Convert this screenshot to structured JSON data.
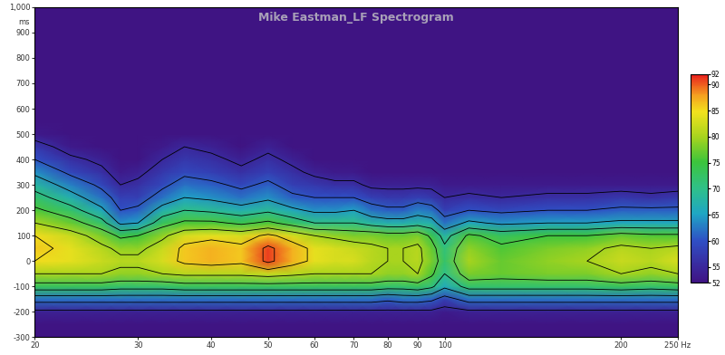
{
  "chart_data": {
    "type": "heatmap",
    "title": "Mike Eastman_LF Spectrogram",
    "ylabel": "ms",
    "log": "x",
    "grid": false,
    "xlim": [
      20,
      250
    ],
    "xticks": [
      20,
      30,
      40,
      50,
      60,
      70,
      80,
      90,
      100,
      200,
      {
        "value": 250,
        "label": "250 Hz"
      }
    ],
    "ylim": [
      -300,
      1000
    ],
    "yticks": [
      -300,
      -200,
      -100,
      0,
      100,
      200,
      300,
      400,
      500,
      600,
      700,
      800,
      900,
      {
        "value": 1000,
        "label": "1,000"
      }
    ],
    "x": [
      20,
      23,
      26,
      28,
      30,
      33,
      36,
      40,
      45,
      50,
      55,
      60,
      65,
      70,
      75,
      80,
      85,
      90,
      95,
      100,
      110,
      125,
      150,
      175,
      200,
      225,
      250
    ],
    "y": [
      -250,
      -200,
      -150,
      -100,
      -50,
      0,
      50,
      100,
      150,
      200,
      250,
      300,
      350,
      400,
      450,
      500,
      550
    ],
    "values": [
      [
        52,
        52,
        52,
        52,
        52,
        52,
        52,
        52,
        52,
        52,
        52,
        52,
        52,
        52,
        52,
        52,
        52,
        52,
        52,
        52,
        52,
        52,
        52,
        52,
        52,
        52,
        52
      ],
      [
        54,
        54,
        54,
        54,
        54,
        54,
        54,
        54,
        54,
        54,
        54,
        54,
        54,
        54,
        54,
        54,
        54,
        54,
        54,
        53,
        54,
        54,
        54,
        54,
        54,
        54,
        54
      ],
      [
        62,
        62,
        62,
        62,
        62,
        62,
        62,
        62,
        62,
        62,
        62,
        62,
        62,
        62,
        62,
        61,
        62,
        62,
        61,
        58,
        62,
        62,
        62,
        62,
        62,
        62,
        62
      ],
      [
        73,
        73,
        73,
        72,
        72,
        72,
        73,
        73,
        73,
        73,
        73,
        73,
        73,
        73,
        73,
        72,
        72,
        73,
        71,
        66,
        72,
        72,
        72,
        72,
        73,
        72,
        73
      ],
      [
        80,
        80,
        80,
        79,
        79,
        80,
        81,
        81,
        81,
        82,
        81,
        80,
        80,
        80,
        80,
        79,
        79,
        80,
        76,
        70,
        78,
        77,
        78,
        78,
        80,
        79,
        80
      ],
      [
        85,
        84,
        82,
        81,
        81,
        83,
        86,
        87,
        86,
        91,
        87,
        84,
        83,
        83,
        81,
        80,
        80,
        81,
        78,
        72,
        80,
        77,
        79,
        80,
        82,
        81,
        83
      ],
      [
        86,
        84,
        81,
        79,
        79,
        82,
        86,
        87,
        86,
        91,
        87,
        84,
        83,
        82,
        81,
        80,
        80,
        81,
        77,
        71,
        79,
        76,
        78,
        79,
        81,
        80,
        81
      ],
      [
        85,
        82,
        78,
        74,
        75,
        79,
        83,
        84,
        83,
        86,
        83,
        80,
        79,
        78,
        78,
        77,
        77,
        78,
        74,
        68,
        76,
        73,
        75,
        75,
        77,
        76,
        76
      ],
      [
        80,
        77,
        72,
        64,
        65,
        73,
        76,
        76,
        74,
        76,
        73,
        70,
        70,
        70,
        68,
        67,
        67,
        68,
        67,
        62,
        66,
        64,
        65,
        65,
        66,
        66,
        66
      ],
      [
        76,
        72,
        66,
        60,
        61,
        67,
        70,
        69,
        67,
        69,
        66,
        64,
        64,
        65,
        62,
        61,
        61,
        63,
        62,
        58,
        60,
        59,
        60,
        60,
        61,
        61,
        61
      ],
      [
        72,
        67,
        62,
        58,
        58,
        62,
        65,
        64,
        62,
        64,
        61,
        60,
        60,
        60,
        58,
        57,
        57,
        58,
        57,
        55,
        56,
        55,
        56,
        56,
        57,
        56,
        57
      ],
      [
        68,
        63,
        59,
        55,
        56,
        59,
        62,
        61,
        59,
        61,
        58,
        57,
        56,
        56,
        54,
        54,
        54,
        54,
        54,
        53,
        53,
        53,
        53,
        53,
        53,
        53,
        53
      ],
      [
        64,
        59,
        56,
        53,
        54,
        57,
        59,
        58,
        56,
        58,
        56,
        54,
        53,
        53,
        52,
        52,
        52,
        52,
        52,
        52,
        52,
        52,
        52,
        52,
        52,
        52,
        52
      ],
      [
        60,
        56,
        54,
        52,
        52,
        55,
        57,
        56,
        54,
        56,
        54,
        52,
        52,
        52,
        52,
        52,
        52,
        52,
        52,
        52,
        52,
        52,
        52,
        52,
        52,
        52,
        52
      ],
      [
        57,
        53,
        52,
        52,
        52,
        53,
        55,
        54,
        52,
        54,
        52,
        52,
        52,
        52,
        52,
        52,
        52,
        52,
        52,
        52,
        52,
        52,
        52,
        52,
        52,
        52,
        52
      ],
      [
        53,
        52,
        52,
        52,
        52,
        52,
        52,
        52,
        52,
        52,
        52,
        52,
        52,
        52,
        52,
        52,
        52,
        52,
        52,
        52,
        52,
        52,
        52,
        52,
        52,
        52,
        52
      ],
      [
        52,
        52,
        52,
        52,
        52,
        52,
        52,
        52,
        52,
        52,
        52,
        52,
        52,
        52,
        52,
        52,
        52,
        52,
        52,
        52,
        52,
        52,
        52,
        52,
        52,
        52,
        52
      ]
    ],
    "colorbar_lim": [
      52,
      92
    ],
    "colorbar_ticks": [
      52,
      55,
      60,
      65,
      70,
      75,
      80,
      85,
      90,
      92
    ]
  }
}
